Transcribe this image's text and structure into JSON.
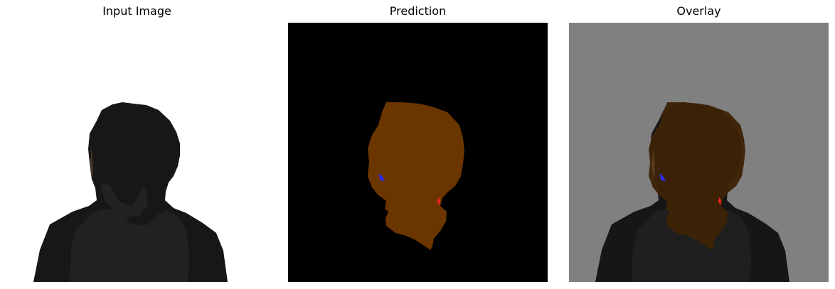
{
  "panels": [
    {
      "title": "Input Image"
    },
    {
      "title": "Prediction"
    },
    {
      "title": "Overlay"
    }
  ],
  "colors": {
    "input_background": "#ffffff",
    "prediction_background": "#000000",
    "overlay_background": "#808080",
    "hair_class": "#6b3500",
    "overlay_hair": "#3d2306",
    "blue_class": "#2b2bff",
    "red_class": "#ff2020",
    "silhouette_dark": "#171717",
    "hoodie_gray": "#262626"
  },
  "icons": {
    "panel_1": "person-back-silhouette",
    "panel_2": "segmentation-mask",
    "panel_3": "mask-overlay"
  }
}
